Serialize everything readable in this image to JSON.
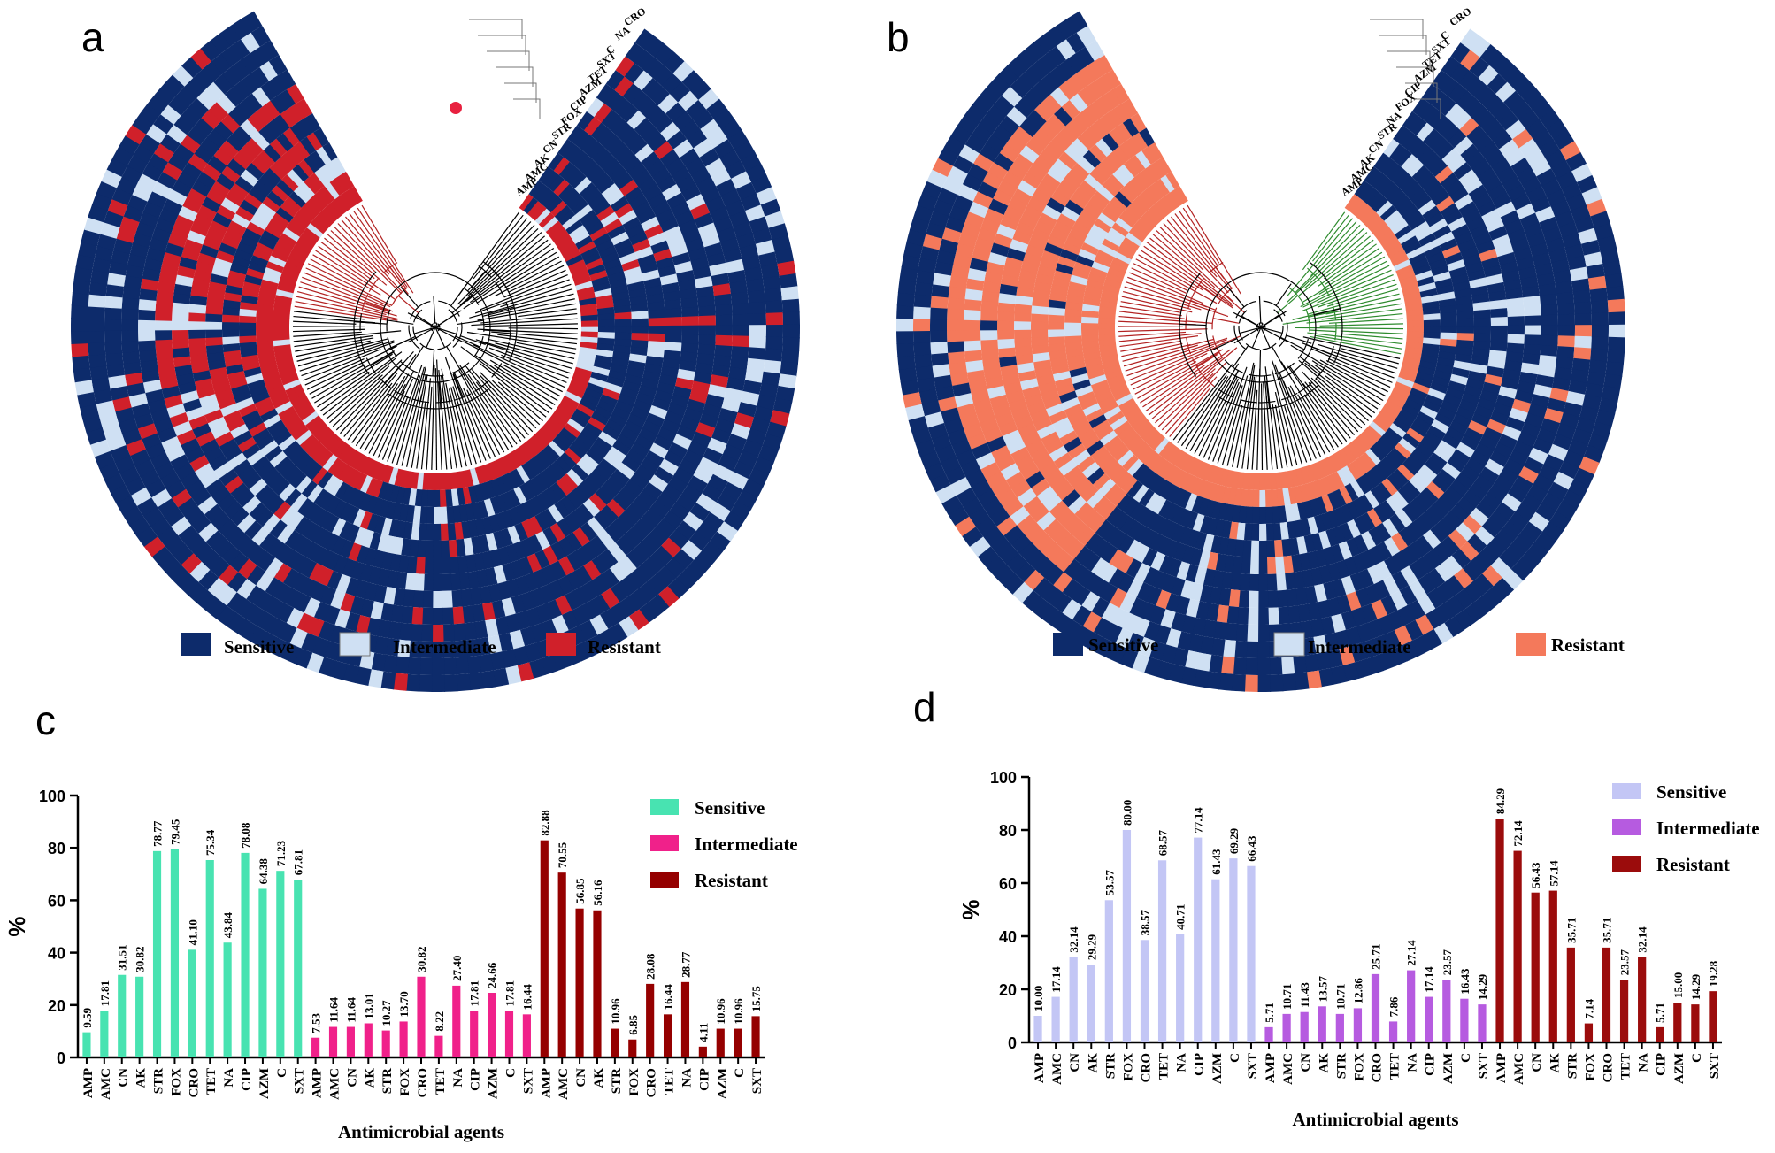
{
  "panels": {
    "a": {
      "letter": "a"
    },
    "b": {
      "letter": "b"
    },
    "c": {
      "letter": "c"
    },
    "d": {
      "letter": "d"
    }
  },
  "legend_heatmap": {
    "sensitive": "Sensitive",
    "intermediate": "Intermediate",
    "resistant": "Resistant"
  },
  "colors": {
    "sensitive": "#0d2b6b",
    "intermediate": "#cfe0f3",
    "resistant_a": "#d0202a",
    "resistant_b": "#f4795b",
    "c_sensitive": "#48e3b1",
    "c_intermediate": "#f0218a",
    "c_resistant": "#950000",
    "d_sensitive": "#c3c6f5",
    "d_intermediate": "#b65be0",
    "d_resistant": "#9b0c0c",
    "clade_red": "#b22222",
    "clade_green": "#2e8b2e"
  },
  "heatmap_a": {
    "ring_labels": [
      "CRO",
      "NA",
      "C",
      "SXT",
      "TET",
      "AZM",
      "CIP",
      "FOX",
      "STR",
      "CN",
      "AK",
      "AMC",
      "AMP"
    ]
  },
  "heatmap_b": {
    "ring_labels": [
      "CRO",
      "C",
      "SXT",
      "TET",
      "AZM",
      "CIP",
      "FOX",
      "NA",
      "STR",
      "CN",
      "AK",
      "AMC",
      "AMP"
    ]
  },
  "chart_data": [
    {
      "panel": "c",
      "type": "bar",
      "xlabel": "Antimicrobial agents",
      "ylabel": "%",
      "ylim": [
        0,
        100
      ],
      "yticks": [
        0,
        20,
        40,
        60,
        80,
        100
      ],
      "legend": [
        "Sensitive",
        "Intermediate",
        "Resistant"
      ],
      "series": [
        {
          "name": "Sensitive",
          "categories": [
            "AMP",
            "AMC",
            "CN",
            "AK",
            "STR",
            "FOX",
            "CRO",
            "TET",
            "NA",
            "CIP",
            "AZM",
            "C",
            "SXT"
          ],
          "values": [
            9.59,
            17.81,
            31.51,
            30.82,
            78.77,
            79.45,
            41.1,
            75.34,
            43.84,
            78.08,
            64.38,
            71.23,
            67.81
          ],
          "labels": [
            "9.59",
            "17.81",
            "31.51",
            "30.82",
            "78.77",
            "79.45",
            "41.10",
            "75.34",
            "43.84",
            "78.08",
            "64.38",
            "71.23",
            "67.81"
          ]
        },
        {
          "name": "Intermediate",
          "categories": [
            "AMP",
            "AMC",
            "CN",
            "AK",
            "STR",
            "FOX",
            "CRO",
            "TET",
            "NA",
            "CIP",
            "AZM",
            "C",
            "SXT"
          ],
          "values": [
            7.53,
            11.64,
            11.64,
            13.01,
            10.27,
            13.7,
            30.82,
            8.22,
            27.4,
            17.81,
            24.66,
            17.81,
            16.44
          ],
          "labels": [
            "7.53",
            "11.64",
            "11.64",
            "13.01",
            "10.27",
            "13.70",
            "30.82",
            "8.22",
            "27.40",
            "17.81",
            "24.66",
            "17.81",
            "16.44"
          ]
        },
        {
          "name": "Resistant",
          "categories": [
            "AMP",
            "AMC",
            "CN",
            "AK",
            "STR",
            "FOX",
            "CRO",
            "TET",
            "NA",
            "CIP",
            "AZM",
            "C",
            "SXT"
          ],
          "values": [
            82.88,
            70.55,
            56.85,
            56.16,
            10.96,
            6.85,
            28.08,
            16.44,
            28.77,
            4.11,
            10.96,
            10.96,
            15.75
          ],
          "labels": [
            "82.88",
            "70.55",
            "56.85",
            "56.16",
            "10.96",
            "6.85",
            "28.08",
            "16.44",
            "28.77",
            "4.11",
            "10.96",
            "10.96",
            "15.75"
          ]
        }
      ]
    },
    {
      "panel": "d",
      "type": "bar",
      "xlabel": "Antimicrobial agents",
      "ylabel": "%",
      "ylim": [
        0,
        100
      ],
      "yticks": [
        0,
        20,
        40,
        60,
        80,
        100
      ],
      "legend": [
        "Sensitive",
        "Intermediate",
        "Resistant"
      ],
      "series": [
        {
          "name": "Sensitive",
          "categories": [
            "AMP",
            "AMC",
            "CN",
            "AK",
            "STR",
            "FOX",
            "CRO",
            "TET",
            "NA",
            "CIP",
            "AZM",
            "C",
            "SXT"
          ],
          "values": [
            10.0,
            17.14,
            32.14,
            29.29,
            53.57,
            80.0,
            38.57,
            68.57,
            40.71,
            77.14,
            61.43,
            69.29,
            66.43
          ],
          "labels": [
            "10.00",
            "17.14",
            "32.14",
            "29.29",
            "53.57",
            "80.00",
            "38.57",
            "68.57",
            "40.71",
            "77.14",
            "61.43",
            "69.29",
            "66.43"
          ]
        },
        {
          "name": "Intermediate",
          "categories": [
            "AMP",
            "AMC",
            "CN",
            "AK",
            "STR",
            "FOX",
            "CRO",
            "TET",
            "NA",
            "CIP",
            "AZM",
            "C",
            "SXT"
          ],
          "values": [
            5.71,
            10.71,
            11.43,
            13.57,
            10.71,
            12.86,
            25.71,
            7.86,
            27.14,
            17.14,
            23.57,
            16.43,
            14.29
          ],
          "labels": [
            "5.71",
            "10.71",
            "11.43",
            "13.57",
            "10.71",
            "12.86",
            "25.71",
            "7.86",
            "27.14",
            "17.14",
            "23.57",
            "16.43",
            "14.29"
          ]
        },
        {
          "name": "Resistant",
          "categories": [
            "AMP",
            "AMC",
            "CN",
            "AK",
            "STR",
            "FOX",
            "CRO",
            "TET",
            "NA",
            "CIP",
            "AZM",
            "C",
            "SXT"
          ],
          "values": [
            84.29,
            72.14,
            56.43,
            57.14,
            35.71,
            7.14,
            35.71,
            23.57,
            32.14,
            5.71,
            15.0,
            14.29,
            19.28
          ],
          "labels": [
            "84.29",
            "72.14",
            "56.43",
            "57.14",
            "35.71",
            "7.14",
            "35.71",
            "23.57",
            "32.14",
            "5.71",
            "15.00",
            "14.29",
            "19.28"
          ]
        }
      ]
    }
  ]
}
